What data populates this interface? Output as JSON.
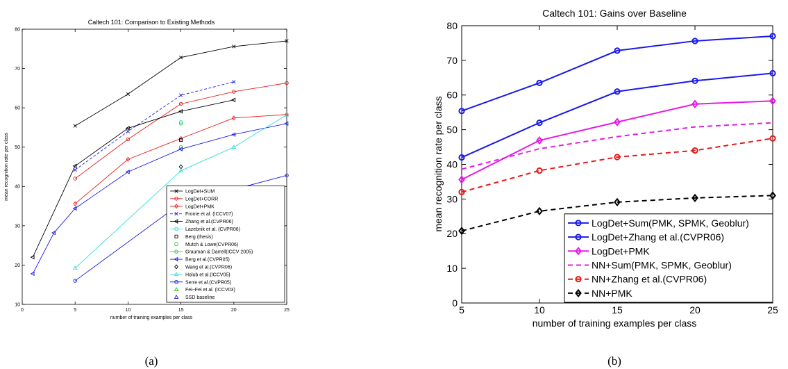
{
  "chart_data": [
    {
      "type": "line",
      "title": "Caltech 101: Comparison to Existing Methods",
      "xlabel": "number of training examples per class",
      "ylabel": "mean recognition rate per class",
      "xlim": [
        0,
        25
      ],
      "ylim": [
        10,
        80
      ],
      "xticks": [
        0,
        5,
        10,
        15,
        20,
        25
      ],
      "yticks": [
        10,
        20,
        30,
        40,
        50,
        60,
        70,
        80
      ],
      "grid": false,
      "legend": "bottom-right",
      "caption": "(a)",
      "series": [
        {
          "name": "LogDet+SUM",
          "color": "#000000",
          "marker": "x",
          "dash": "solid",
          "x": [
            5,
            10,
            15,
            20,
            25
          ],
          "y": [
            55.4,
            63.5,
            72.8,
            75.6,
            77.0
          ]
        },
        {
          "name": "LogDet+CORR",
          "color": "#e8191a",
          "marker": "o",
          "dash": "solid",
          "x": [
            5,
            10,
            15,
            20,
            25
          ],
          "y": [
            42.0,
            52.0,
            61.0,
            64.1,
            66.3
          ]
        },
        {
          "name": "LogDet+PMK",
          "color": "#e8191a",
          "marker": "d",
          "dash": "solid",
          "x": [
            5,
            10,
            15,
            20,
            25
          ],
          "y": [
            35.6,
            46.9,
            52.2,
            57.4,
            58.3
          ]
        },
        {
          "name": "Frome et al. (ICCV07)",
          "color": "#1a1ae8",
          "marker": "x",
          "dash": "dash",
          "x": [
            5,
            10,
            15,
            20
          ],
          "y": [
            44.2,
            54.0,
            63.2,
            66.6
          ]
        },
        {
          "name": "Zhang et al.(CVPR06)",
          "color": "#000000",
          "marker": "tl",
          "dash": "solid",
          "x": [
            1,
            5,
            10,
            15,
            20
          ],
          "y": [
            22.0,
            45.2,
            54.8,
            59.1,
            62.0
          ]
        },
        {
          "name": "Lazebnik et al. (CVPR06)",
          "color": "#33dddd",
          "marker": "o",
          "dash": "solid",
          "x": [
            15
          ],
          "y": [
            56.4
          ]
        },
        {
          "name": "Berg (thesis)",
          "color": "#000000",
          "marker": "s",
          "dash": "none",
          "x": [
            15
          ],
          "y": [
            51.8
          ]
        },
        {
          "name": "Mutch & Lowe(CVPR06)",
          "color": "#22cc22",
          "marker": "o",
          "dash": "none",
          "x": [
            15
          ],
          "y": [
            56.0
          ]
        },
        {
          "name": "Grauman & Darrell(ICCV 2005)",
          "color": "#22cc22",
          "marker": "o",
          "dash": "solid",
          "x": [
            15
          ],
          "y": [
            50.0
          ]
        },
        {
          "name": "Berg et al.(CVPR05)",
          "color": "#1a1ae8",
          "marker": "tl",
          "dash": "solid",
          "x": [
            1,
            3,
            5,
            10,
            15,
            20,
            25
          ],
          "y": [
            17.8,
            28.2,
            34.4,
            43.7,
            49.5,
            53.2,
            56.0
          ]
        },
        {
          "name": "Wang et al.(CVPR06)",
          "color": "#000000",
          "marker": "d",
          "dash": "none",
          "x": [
            15
          ],
          "y": [
            45.0
          ]
        },
        {
          "name": "Holub et al.(ICCV05)",
          "color": "#33dddd",
          "marker": "t",
          "dash": "solid",
          "x": [
            5,
            15,
            20,
            25
          ],
          "y": [
            19.2,
            44.0,
            50.0,
            58.2
          ]
        },
        {
          "name": "Serre et al.(CVPR05)",
          "color": "#1a1ae8",
          "marker": "o",
          "dash": "solid",
          "x": [
            5,
            15,
            25
          ],
          "y": [
            16.0,
            35.7,
            42.8
          ]
        },
        {
          "name": "Fei−Fei et al. (ICCV03)",
          "color": "#22cc22",
          "marker": "t",
          "dash": "none",
          "x": [
            15
          ],
          "y": [
            35.0
          ]
        },
        {
          "name": "SSD baseline",
          "color": "#1a1ae8",
          "marker": "t",
          "dash": "none",
          "x": [
            15
          ],
          "y": [
            17.0
          ]
        }
      ]
    },
    {
      "type": "line",
      "title": "Caltech 101: Gains over Baseline",
      "xlabel": "number of training examples per class",
      "ylabel": "mean recognition rate per class",
      "xlim": [
        5,
        25
      ],
      "ylim": [
        0,
        80
      ],
      "xticks": [
        5,
        10,
        15,
        20,
        25
      ],
      "yticks": [
        0,
        10,
        20,
        30,
        40,
        50,
        60,
        70,
        80
      ],
      "grid": false,
      "legend": "bottom-right",
      "caption": "(b)",
      "series": [
        {
          "name": "LogDet+Sum(PMK, SPMK, Geoblur)",
          "color": "#1a1ae8",
          "marker": "o",
          "dash": "solid",
          "x": [
            5,
            10,
            15,
            20,
            25
          ],
          "y": [
            55.4,
            63.5,
            72.8,
            75.6,
            77.0
          ]
        },
        {
          "name": "LogDet+Zhang et al.(CVPR06)",
          "color": "#1a1ae8",
          "marker": "o",
          "dash": "solid",
          "x": [
            5,
            10,
            15,
            20,
            25
          ],
          "y": [
            42.0,
            52.0,
            61.0,
            64.1,
            66.3
          ]
        },
        {
          "name": "LogDet+PMK",
          "color": "#e61ae6",
          "marker": "d",
          "dash": "solid",
          "x": [
            5,
            10,
            15,
            20,
            25
          ],
          "y": [
            35.6,
            46.9,
            52.2,
            57.4,
            58.3
          ]
        },
        {
          "name": "NN+Sum(PMK, SPMK, Geoblur)",
          "color": "#e61ae6",
          "marker": "none",
          "dash": "dash",
          "x": [
            5,
            10,
            15,
            20,
            25
          ],
          "y": [
            38.6,
            44.5,
            48.0,
            50.8,
            52.0
          ]
        },
        {
          "name": "NN+Zhang et al.(CVPR06)",
          "color": "#e8191a",
          "marker": "o",
          "dash": "dash",
          "x": [
            5,
            10,
            15,
            20,
            25
          ],
          "y": [
            32.0,
            38.2,
            42.1,
            44.0,
            47.5
          ]
        },
        {
          "name": "NN+PMK",
          "color": "#000000",
          "marker": "d",
          "dash": "dash",
          "x": [
            5,
            10,
            15,
            20,
            25
          ],
          "y": [
            20.8,
            26.5,
            29.1,
            30.3,
            31.0
          ]
        }
      ]
    }
  ]
}
